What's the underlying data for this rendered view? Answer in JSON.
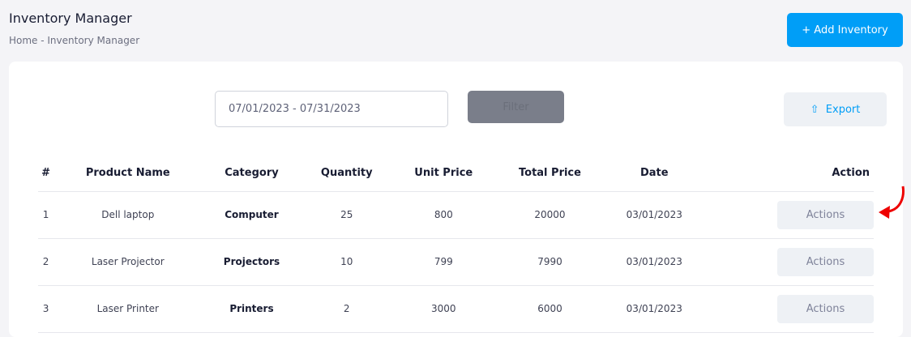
{
  "header": {
    "title": "Inventory Manager",
    "breadcrumb": "Home - Inventory Manager",
    "add_label": "+ Add Inventory"
  },
  "filters": {
    "date_range": "07/01/2023 - 07/31/2023",
    "filter_label": "Filter",
    "export_label": "Export"
  },
  "table": {
    "columns": [
      "#",
      "Product Name",
      "Category",
      "Quantity",
      "Unit Price",
      "Total Price",
      "Date",
      "Action"
    ],
    "rows": [
      {
        "n": "1",
        "name": "Dell laptop",
        "category": "Computer",
        "qty": "25",
        "unit": "800",
        "total": "20000",
        "date": "03/01/2023",
        "action": "Actions"
      },
      {
        "n": "2",
        "name": "Laser Projector",
        "category": "Projectors",
        "qty": "10",
        "unit": "799",
        "total": "7990",
        "date": "03/01/2023",
        "action": "Actions"
      },
      {
        "n": "3",
        "name": "Laser Printer",
        "category": "Printers",
        "qty": "2",
        "unit": "3000",
        "total": "6000",
        "date": "03/01/2023",
        "action": "Actions"
      }
    ]
  },
  "colors": {
    "accent": "#009ef7",
    "annotation": "#ee0000"
  }
}
